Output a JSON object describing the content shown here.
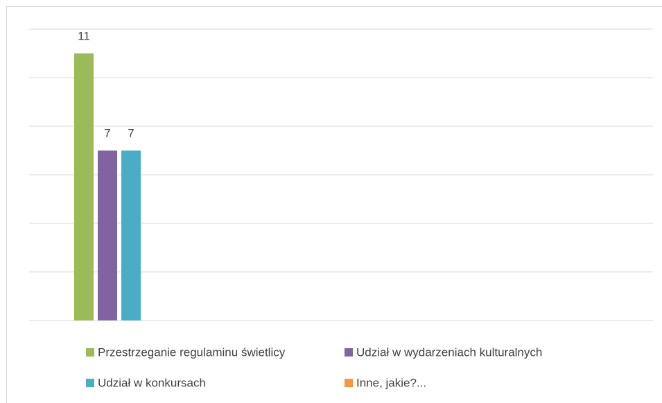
{
  "chart_data": {
    "type": "bar",
    "categories": [
      null
    ],
    "series": [
      {
        "name": "Przestrzeganie regulaminu świetlicy",
        "color": "#9bbb59",
        "values": [
          11
        ]
      },
      {
        "name": "Udział w wydarzeniach kulturalnych",
        "color": "#8064a2",
        "values": [
          7
        ]
      },
      {
        "name": "Udział w konkursach",
        "color": "#4bacc6",
        "values": [
          7
        ]
      },
      {
        "name": "Inne, jakie?...",
        "color": "#f79646",
        "values": [
          null
        ]
      }
    ],
    "ylim": [
      0,
      12
    ],
    "yticks": [
      0,
      2,
      4,
      6,
      8,
      10,
      12
    ],
    "grid": true,
    "legend": "bottom"
  }
}
